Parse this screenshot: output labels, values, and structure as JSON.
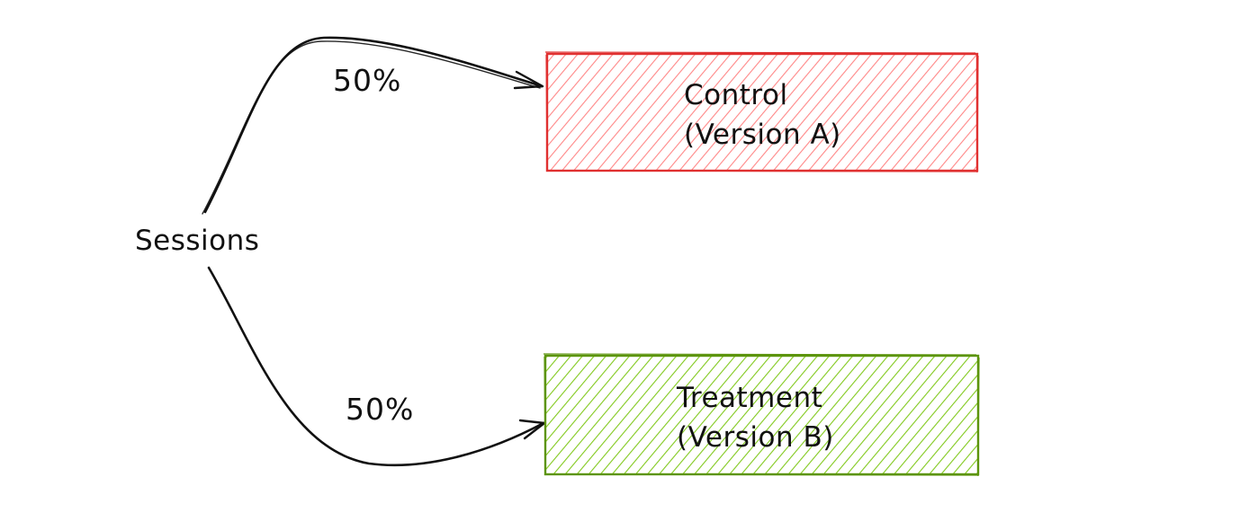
{
  "diagram": {
    "source": {
      "label": "Sessions"
    },
    "branches": [
      {
        "percentage": "50%",
        "title": "Control",
        "subtitle": "(Version A)",
        "color": "#e03131"
      },
      {
        "percentage": "50%",
        "title": "Treatment",
        "subtitle": "(Version B)",
        "color": "#5c940d"
      }
    ]
  }
}
